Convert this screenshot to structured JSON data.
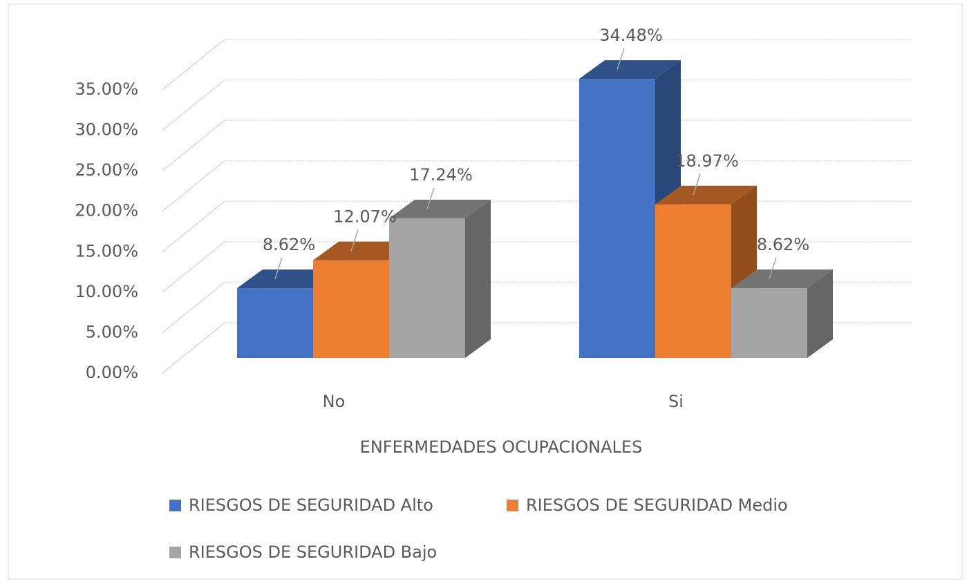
{
  "chart_data": {
    "type": "bar3d",
    "x_label": "ENFERMEDADES OCUPACIONALES",
    "categories": [
      "No",
      "Si"
    ],
    "series": [
      {
        "name": "RIESGOS DE SEGURIDAD Alto",
        "color": "#4472c4",
        "values": [
          8.62,
          34.48
        ],
        "value_labels": [
          "8.62%",
          "34.48%"
        ]
      },
      {
        "name": "RIESGOS DE SEGURIDAD Medio",
        "color": "#ed7d31",
        "values": [
          12.07,
          18.97
        ],
        "value_labels": [
          "12.07%",
          "18.97%"
        ]
      },
      {
        "name": "RIESGOS DE SEGURIDAD Bajo",
        "color": "#a5a5a5",
        "values": [
          17.24,
          8.62
        ],
        "value_labels": [
          "17.24%",
          "8.62%"
        ]
      }
    ],
    "ylim": [
      0,
      35
    ],
    "yticks": [
      {
        "value": 0,
        "label": "0.00%"
      },
      {
        "value": 5,
        "label": "5.00%"
      },
      {
        "value": 10,
        "label": "10.00%"
      },
      {
        "value": 15,
        "label": "15.00%"
      },
      {
        "value": 20,
        "label": "20.00%"
      },
      {
        "value": 25,
        "label": "25.00%"
      },
      {
        "value": 30,
        "label": "30.00%"
      },
      {
        "value": 35,
        "label": "35.00%"
      }
    ],
    "grid": true,
    "legend": "bottom"
  }
}
